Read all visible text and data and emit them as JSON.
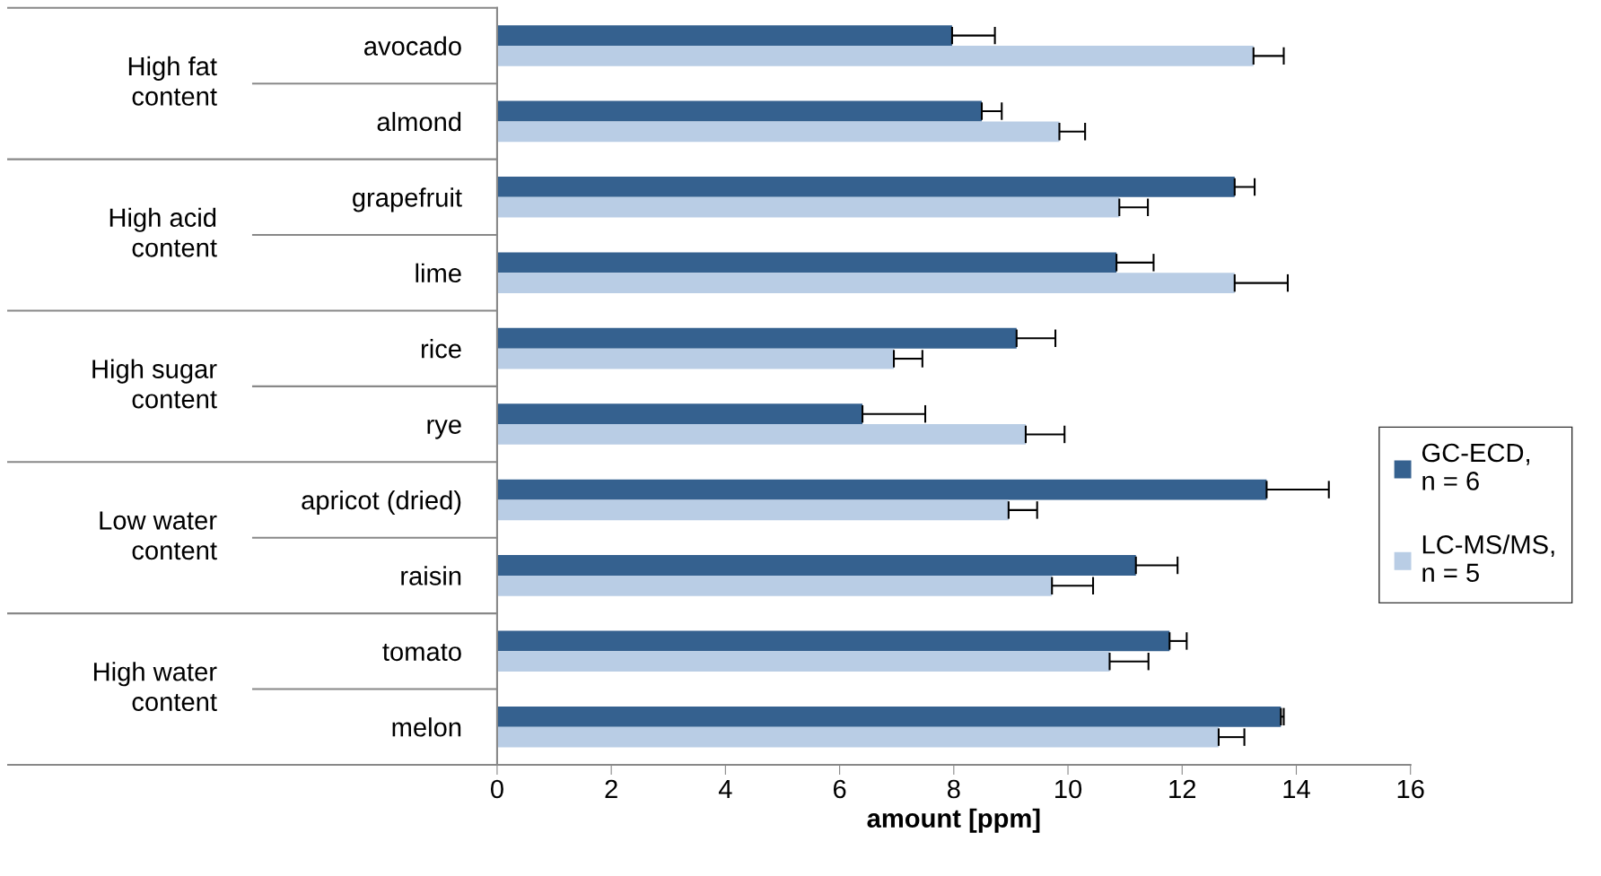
{
  "chart_data": {
    "type": "bar",
    "orientation": "horizontal",
    "xlabel": "amount [ppm]",
    "categories": [
      "avocado",
      "almond",
      "grapefruit",
      "lime",
      "rice",
      "rye",
      "apricot (dried)",
      "raisin",
      "tomato",
      "melon"
    ],
    "series": [
      {
        "name": "GC-ECD,\nn = 6",
        "color": "#35618f",
        "values": [
          7.97,
          8.49,
          12.92,
          10.85,
          9.1,
          6.4,
          13.48,
          11.19,
          11.78,
          13.73
        ],
        "errors": [
          [
            7.97,
            8.72
          ],
          [
            8.49,
            8.84
          ],
          [
            12.92,
            13.27
          ],
          [
            10.85,
            11.5
          ],
          [
            9.1,
            9.78
          ],
          [
            6.4,
            7.5
          ],
          [
            13.48,
            14.57
          ],
          [
            11.19,
            11.92
          ],
          [
            11.78,
            12.08
          ],
          [
            13.73,
            13.78
          ]
        ]
      },
      {
        "name": "LC-MS/MS,\nn = 5",
        "color": "#b9cde5",
        "values": [
          13.25,
          9.85,
          10.9,
          12.92,
          6.95,
          9.26,
          8.96,
          9.72,
          10.73,
          12.64
        ],
        "errors": [
          [
            13.25,
            13.78
          ],
          [
            9.85,
            10.3
          ],
          [
            10.9,
            11.4
          ],
          [
            12.92,
            13.85
          ],
          [
            6.95,
            7.45
          ],
          [
            9.26,
            9.94
          ],
          [
            8.96,
            9.46
          ],
          [
            9.72,
            10.44
          ],
          [
            10.73,
            11.41
          ],
          [
            12.64,
            13.09
          ]
        ]
      }
    ],
    "annotations": [
      "High fat\ncontent",
      "High acid\ncontent",
      "High sugar\ncontent",
      "Low water\ncontent",
      "High water\ncontent"
    ],
    "xlim": [
      0,
      16
    ],
    "xticks": [
      0,
      2,
      4,
      6,
      8,
      10,
      12,
      14,
      16
    ],
    "grid": false,
    "legend": "right"
  }
}
